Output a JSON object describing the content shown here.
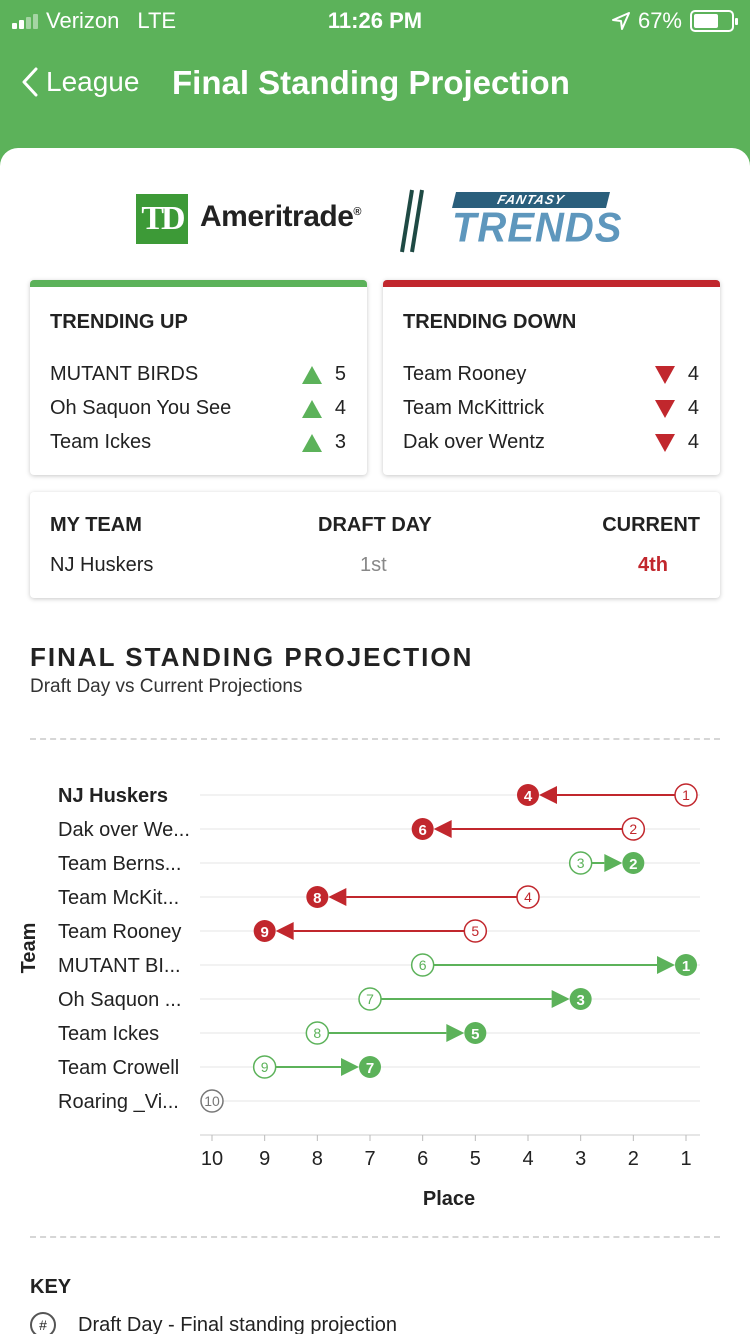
{
  "status_bar": {
    "carrier": "Verizon",
    "network": "LTE",
    "time": "11:26 PM",
    "battery": "67%",
    "battery_level": 0.67
  },
  "nav": {
    "back_label": "League",
    "title": "Final Standing Projection"
  },
  "sponsor": {
    "brand_mark": "TD",
    "brand_name": "Ameritrade",
    "registered": "®",
    "partner_top": "FANTASY",
    "partner_word": "TRENDS"
  },
  "trending_up": {
    "title": "TRENDING UP",
    "items": [
      {
        "name": "MUTANT BIRDS",
        "value": "5"
      },
      {
        "name": "Oh Saquon You See",
        "value": "4"
      },
      {
        "name": "Team Ickes",
        "value": "3"
      }
    ]
  },
  "trending_down": {
    "title": "TRENDING DOWN",
    "items": [
      {
        "name": "Team Rooney",
        "value": "4"
      },
      {
        "name": "Team McKittrick",
        "value": "4"
      },
      {
        "name": "Dak over Wentz",
        "value": "4"
      }
    ]
  },
  "my_team": {
    "headers": {
      "team": "MY TEAM",
      "draft": "DRAFT DAY",
      "current": "CURRENT"
    },
    "team_name": "NJ Huskers",
    "draft_day": "1st",
    "current": "4th"
  },
  "section": {
    "title": "FINAL STANDING PROJECTION",
    "subtitle": "Draft Day vs Current Projections"
  },
  "colors": {
    "up": "#5cb25a",
    "down": "#c1272d",
    "neutral": "#777777",
    "brand_green": "#5cb25a"
  },
  "chart_data": {
    "type": "dumbbell",
    "xlabel": "Place",
    "ylabel": "Team",
    "xlim": [
      10,
      1
    ],
    "x_ticks": [
      10,
      9,
      8,
      7,
      6,
      5,
      4,
      3,
      2,
      1
    ],
    "x_reversed": true,
    "rows": [
      {
        "label": "NJ Huskers",
        "draft": 1,
        "current": 4,
        "highlight": true
      },
      {
        "label": "Dak over We...",
        "draft": 2,
        "current": 6
      },
      {
        "label": "Team Berns...",
        "draft": 3,
        "current": 2
      },
      {
        "label": "Team McKit...",
        "draft": 4,
        "current": 8
      },
      {
        "label": "Team Rooney",
        "draft": 5,
        "current": 9
      },
      {
        "label": "MUTANT BI...",
        "draft": 6,
        "current": 1
      },
      {
        "label": "Oh Saquon ...",
        "draft": 7,
        "current": 3
      },
      {
        "label": "Team Ickes",
        "draft": 8,
        "current": 5
      },
      {
        "label": "Team Crowell",
        "draft": 9,
        "current": 7
      },
      {
        "label": "Roaring _Vi...",
        "draft": 10,
        "current": 10
      }
    ]
  },
  "key": {
    "title": "KEY",
    "icon_text": "#",
    "text": "Draft Day - Final standing projection"
  }
}
